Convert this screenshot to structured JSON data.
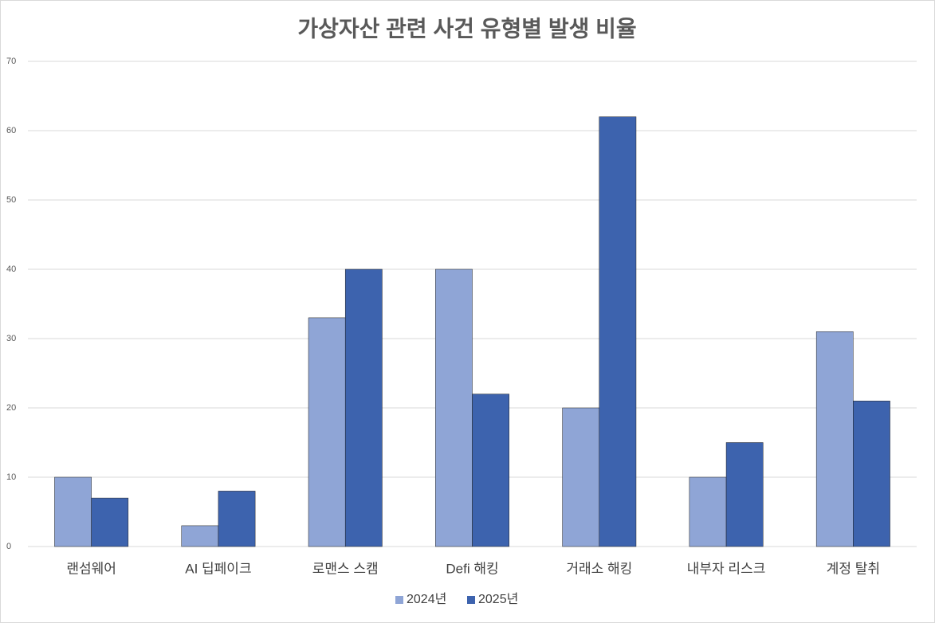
{
  "chart_data": {
    "type": "bar",
    "title": "가상자산 관련 사건 유형별 발생 비율",
    "categories": [
      "랜섬웨어",
      "AI 딥페이크",
      "로맨스 스캠",
      "Defi 해킹",
      "거래소 해킹",
      "내부자 리스크",
      "계정 탈취"
    ],
    "series": [
      {
        "name": "2024년",
        "color": "#8fa5d6",
        "values": [
          10,
          3,
          33,
          40,
          20,
          10,
          31
        ]
      },
      {
        "name": "2025년",
        "color": "#3d63ae",
        "values": [
          7,
          8,
          40,
          22,
          62,
          15,
          21
        ]
      }
    ],
    "ylim": [
      0,
      70
    ],
    "yticks": [
      0,
      10,
      20,
      30,
      40,
      50,
      60,
      70
    ],
    "grid": true,
    "legend": "bottom"
  }
}
